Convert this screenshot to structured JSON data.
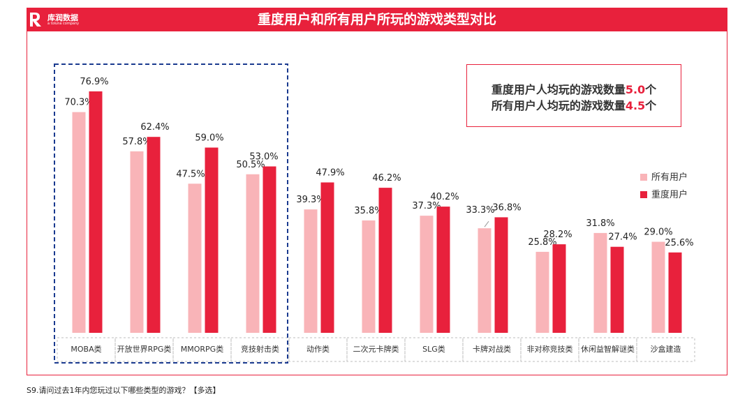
{
  "header": {
    "title": "重度用户和所有用户所玩的游戏类型对比",
    "logo_text": "库润数据",
    "logo_sub": "a toluna company"
  },
  "note": {
    "line1_prefix": "重度用户人均玩的游戏数量",
    "line1_value": "5.0",
    "line1_suffix": "个",
    "line2_prefix": "所有用户人均玩的游戏数量",
    "line2_value": "4.5",
    "line2_suffix": "个"
  },
  "footer": {
    "question": "S9.请问过去1年内您玩过以下哪些类型的游戏？【多选】"
  },
  "chart_data": {
    "type": "bar",
    "categories": [
      "MOBA类",
      "开放世界RPG类",
      "MMORPG类",
      "竞技射击类",
      "动作类",
      "二次元卡牌类",
      "SLG类",
      "卡牌对战类",
      "非对称竞技类",
      "休闲益智解谜类",
      "沙盒建造"
    ],
    "series": [
      {
        "name": "所有用户",
        "values": [
          70.3,
          57.8,
          47.5,
          50.5,
          39.3,
          35.8,
          37.3,
          33.3,
          25.8,
          31.8,
          29.0
        ],
        "color": "#f9b4b8"
      },
      {
        "name": "重度用户",
        "values": [
          76.9,
          62.4,
          59.0,
          53.0,
          47.9,
          46.2,
          40.2,
          36.8,
          28.2,
          27.4,
          25.6
        ],
        "color": "#e8213c"
      }
    ],
    "value_suffix": "%",
    "ylim": [
      0,
      100
    ],
    "legend_position": "right",
    "highlight_group": [
      "MOBA类",
      "开放世界RPG类",
      "MMORPG类",
      "竞技射击类"
    ],
    "highlight_color": "#1a3a8f"
  }
}
